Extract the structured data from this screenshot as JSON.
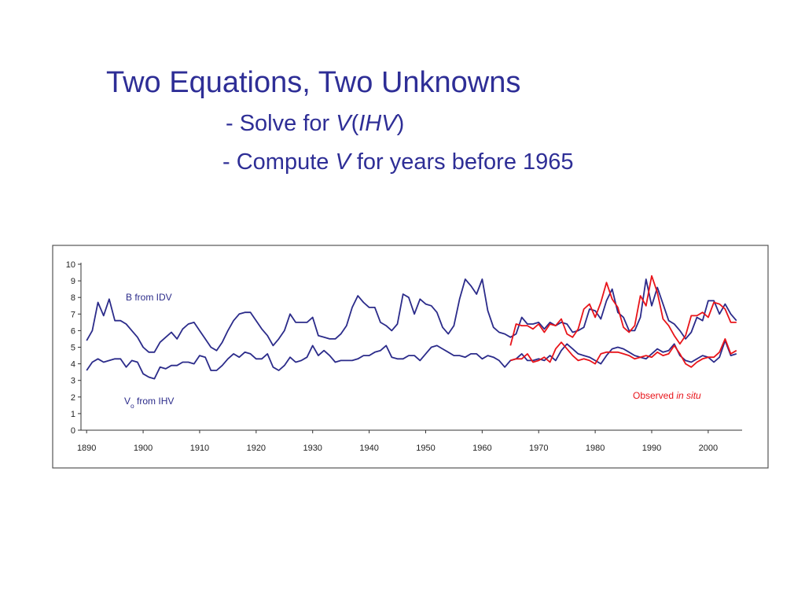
{
  "slide": {
    "lines": [
      [
        {
          "text": "Two Equations, Two Unknowns"
        }
      ],
      [
        {
          "text": "- Solve for "
        },
        {
          "text": "V",
          "italic": true
        },
        {
          "text": "("
        },
        {
          "text": "IHV",
          "italic": true
        },
        {
          "text": ")"
        }
      ],
      [
        {
          "text": "-  Compute "
        },
        {
          "text": "V",
          "italic": true
        },
        {
          "text": " for years before 1965"
        }
      ]
    ]
  },
  "chart_data": {
    "type": "line",
    "xlim": [
      1889,
      2006
    ],
    "ylim": [
      0,
      10
    ],
    "xticks": [
      1890,
      1900,
      1910,
      1920,
      1930,
      1940,
      1950,
      1960,
      1970,
      1980,
      1990,
      2000
    ],
    "yticks": [
      0,
      1,
      2,
      3,
      4,
      5,
      6,
      7,
      8,
      9,
      10
    ],
    "annotations": [
      {
        "parts": [
          {
            "text": "B from IDV"
          }
        ],
        "color": "#2b2b8a"
      },
      {
        "parts": [
          {
            "text": "V"
          },
          {
            "text": "o",
            "sub": true
          },
          {
            "text": " from IHV"
          }
        ],
        "color": "#2b2b8a"
      },
      {
        "parts": [
          {
            "text": "Observed "
          },
          {
            "text": "in situ",
            "italic": true
          }
        ],
        "color": "#e8141a"
      }
    ],
    "series": [
      {
        "color": "#2b2b8a",
        "x": [
          1890,
          1891,
          1892,
          1893,
          1894,
          1895,
          1896,
          1897,
          1898,
          1899,
          1900,
          1901,
          1902,
          1903,
          1904,
          1905,
          1906,
          1907,
          1908,
          1909,
          1910,
          1911,
          1912,
          1913,
          1914,
          1915,
          1916,
          1917,
          1918,
          1919,
          1920,
          1921,
          1922,
          1923,
          1924,
          1925,
          1926,
          1927,
          1928,
          1929,
          1930,
          1931,
          1932,
          1933,
          1934,
          1935,
          1936,
          1937,
          1938,
          1939,
          1940,
          1941,
          1942,
          1943,
          1944,
          1945,
          1946,
          1947,
          1948,
          1949,
          1950,
          1951,
          1952,
          1953,
          1954,
          1955,
          1956,
          1957,
          1958,
          1959,
          1960,
          1961,
          1962,
          1963,
          1964,
          1965,
          1966,
          1967,
          1968,
          1969,
          1970,
          1971,
          1972,
          1973,
          1974,
          1975,
          1976,
          1977,
          1978,
          1979,
          1980,
          1981,
          1982,
          1983,
          1984,
          1985,
          1986,
          1987,
          1988,
          1989,
          1990,
          1991,
          1992,
          1993,
          1994,
          1995,
          1996,
          1997,
          1998,
          1999,
          2000,
          2001,
          2002,
          2003,
          2004,
          2005
        ],
        "values": [
          5.4,
          6.0,
          7.7,
          6.9,
          7.9,
          6.6,
          6.6,
          6.4,
          6.0,
          5.6,
          5.0,
          4.7,
          4.7,
          5.3,
          5.6,
          5.9,
          5.5,
          6.1,
          6.4,
          6.5,
          6.0,
          5.5,
          5.0,
          4.8,
          5.3,
          6.0,
          6.6,
          7.0,
          7.1,
          7.1,
          6.6,
          6.1,
          5.7,
          5.1,
          5.5,
          6.0,
          7.0,
          6.5,
          6.5,
          6.5,
          6.8,
          5.7,
          5.6,
          5.5,
          5.5,
          5.8,
          6.3,
          7.4,
          8.1,
          7.7,
          7.4,
          7.4,
          6.5,
          6.3,
          6.0,
          6.4,
          8.2,
          8.0,
          7.0,
          7.9,
          7.6,
          7.5,
          7.1,
          6.2,
          5.8,
          6.3,
          7.9,
          9.1,
          8.7,
          8.2,
          9.1,
          7.2,
          6.2,
          5.9,
          5.8,
          5.6,
          5.8,
          6.8,
          6.4,
          6.4,
          6.5,
          6.1,
          6.5,
          6.3,
          6.5,
          6.4,
          5.9,
          6.0,
          6.2,
          7.3,
          7.2,
          6.7,
          7.8,
          8.5,
          7.1,
          6.8,
          6.0,
          6.0,
          6.8,
          9.1,
          7.5,
          8.6,
          7.6,
          6.6,
          6.4,
          6.0,
          5.5,
          5.9,
          6.8,
          6.6,
          7.8,
          7.8,
          7.0,
          7.6,
          7.0,
          6.6
        ]
      },
      {
        "color": "#2b2b8a",
        "x": [
          1890,
          1891,
          1892,
          1893,
          1894,
          1895,
          1896,
          1897,
          1898,
          1899,
          1900,
          1901,
          1902,
          1903,
          1904,
          1905,
          1906,
          1907,
          1908,
          1909,
          1910,
          1911,
          1912,
          1913,
          1914,
          1915,
          1916,
          1917,
          1918,
          1919,
          1920,
          1921,
          1922,
          1923,
          1924,
          1925,
          1926,
          1927,
          1928,
          1929,
          1930,
          1931,
          1932,
          1933,
          1934,
          1935,
          1936,
          1937,
          1938,
          1939,
          1940,
          1941,
          1942,
          1943,
          1944,
          1945,
          1946,
          1947,
          1948,
          1949,
          1950,
          1951,
          1952,
          1953,
          1954,
          1955,
          1956,
          1957,
          1958,
          1959,
          1960,
          1961,
          1962,
          1963,
          1964,
          1965,
          1966,
          1967,
          1968,
          1969,
          1970,
          1971,
          1972,
          1973,
          1974,
          1975,
          1976,
          1977,
          1978,
          1979,
          1980,
          1981,
          1982,
          1983,
          1984,
          1985,
          1986,
          1987,
          1988,
          1989,
          1990,
          1991,
          1992,
          1993,
          1994,
          1995,
          1996,
          1997,
          1998,
          1999,
          2000,
          2001,
          2002,
          2003,
          2004,
          2005
        ],
        "values": [
          3.6,
          4.1,
          4.3,
          4.1,
          4.2,
          4.3,
          4.3,
          3.8,
          4.2,
          4.1,
          3.4,
          3.2,
          3.1,
          3.8,
          3.7,
          3.9,
          3.9,
          4.1,
          4.1,
          4.0,
          4.5,
          4.4,
          3.6,
          3.6,
          3.9,
          4.3,
          4.6,
          4.4,
          4.7,
          4.6,
          4.3,
          4.3,
          4.6,
          3.8,
          3.6,
          3.9,
          4.4,
          4.1,
          4.2,
          4.4,
          5.1,
          4.5,
          4.8,
          4.5,
          4.1,
          4.2,
          4.2,
          4.2,
          4.3,
          4.5,
          4.5,
          4.7,
          4.8,
          5.1,
          4.4,
          4.3,
          4.3,
          4.5,
          4.5,
          4.2,
          4.6,
          5.0,
          5.1,
          4.9,
          4.7,
          4.5,
          4.5,
          4.4,
          4.6,
          4.6,
          4.3,
          4.5,
          4.4,
          4.2,
          3.8,
          4.2,
          4.3,
          4.6,
          4.2,
          4.2,
          4.3,
          4.2,
          4.5,
          4.2,
          4.8,
          5.2,
          4.9,
          4.6,
          4.5,
          4.4,
          4.2,
          4.0,
          4.5,
          4.9,
          5.0,
          4.9,
          4.7,
          4.5,
          4.4,
          4.3,
          4.6,
          4.9,
          4.7,
          4.8,
          5.2,
          4.5,
          4.2,
          4.1,
          4.3,
          4.5,
          4.4,
          4.1,
          4.4,
          5.4,
          4.5,
          4.6
        ]
      },
      {
        "color": "#e8141a",
        "x": [
          1965,
          1966,
          1967,
          1968,
          1969,
          1970,
          1971,
          1972,
          1973,
          1974,
          1975,
          1976,
          1977,
          1978,
          1979,
          1980,
          1981,
          1982,
          1983,
          1984,
          1985,
          1986,
          1987,
          1988,
          1989,
          1990,
          1991,
          1992,
          1993,
          1994,
          1995,
          1996,
          1997,
          1998,
          1999,
          2000,
          2001,
          2002,
          2003,
          2004,
          2005
        ],
        "values": [
          5.1,
          6.4,
          6.3,
          6.3,
          6.1,
          6.4,
          5.9,
          6.4,
          6.3,
          6.7,
          5.8,
          5.6,
          6.1,
          7.3,
          7.6,
          6.8,
          7.7,
          8.9,
          7.9,
          7.4,
          6.2,
          5.9,
          6.3,
          8.1,
          7.5,
          9.3,
          8.3,
          6.7,
          6.3,
          5.7,
          5.2,
          5.7,
          6.9,
          6.9,
          7.1,
          6.8,
          7.7,
          7.6,
          7.3,
          6.5,
          6.5
        ]
      },
      {
        "color": "#e8141a",
        "x": [
          1965,
          1966,
          1967,
          1968,
          1969,
          1970,
          1971,
          1972,
          1973,
          1974,
          1975,
          1976,
          1977,
          1978,
          1979,
          1980,
          1981,
          1982,
          1983,
          1984,
          1985,
          1986,
          1987,
          1988,
          1989,
          1990,
          1991,
          1992,
          1993,
          1994,
          1995,
          1996,
          1997,
          1998,
          1999,
          2000,
          2001,
          2002,
          2003,
          2004,
          2005
        ],
        "values": [
          4.2,
          4.3,
          4.3,
          4.6,
          4.1,
          4.2,
          4.4,
          4.1,
          4.9,
          5.3,
          4.9,
          4.5,
          4.2,
          4.3,
          4.2,
          4.0,
          4.6,
          4.7,
          4.7,
          4.7,
          4.6,
          4.5,
          4.3,
          4.4,
          4.5,
          4.4,
          4.7,
          4.5,
          4.6,
          5.1,
          4.6,
          4.0,
          3.8,
          4.1,
          4.3,
          4.4,
          4.4,
          4.7,
          5.5,
          4.6,
          4.8
        ]
      }
    ]
  }
}
